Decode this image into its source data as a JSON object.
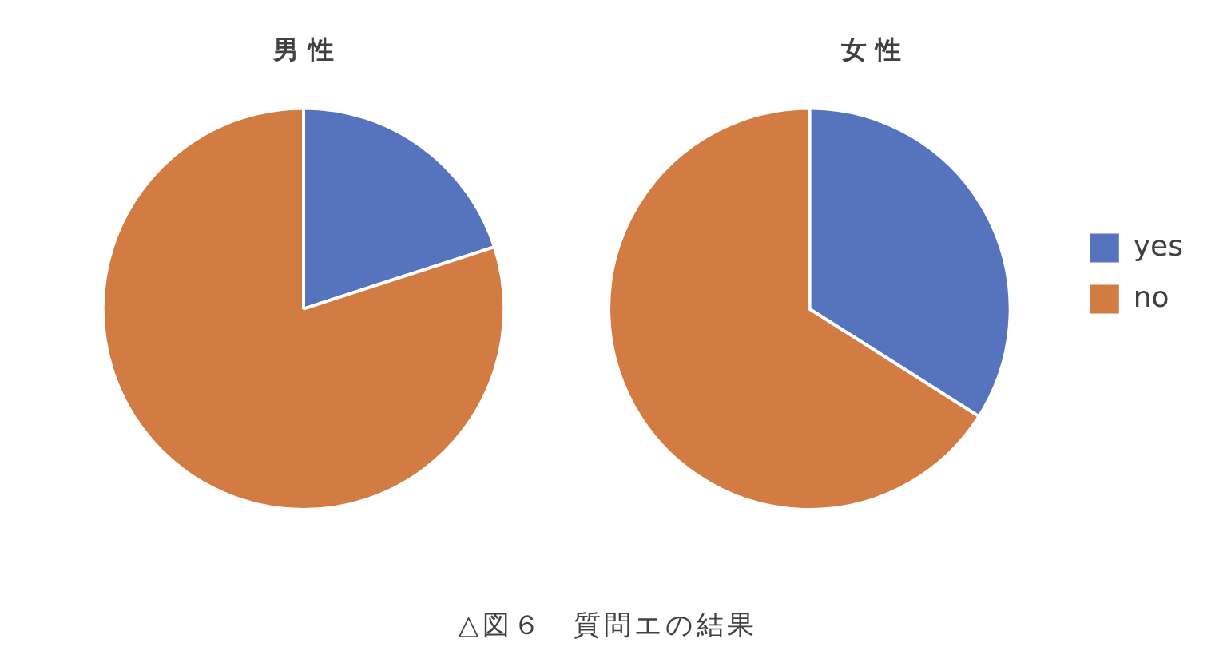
{
  "chart_data": [
    {
      "type": "pie",
      "title": "男 性",
      "categories": [
        null,
        null
      ],
      "values": [
        20,
        80
      ],
      "colors": [
        "#5673bd",
        "#d27b43"
      ],
      "legend": false
    },
    {
      "type": "pie",
      "title": "女 性",
      "categories": [
        "yes",
        "no"
      ],
      "values": [
        34,
        66
      ],
      "colors": [
        "#5673bd",
        "#d27b43"
      ],
      "legend": "right",
      "annotations": [
        "△図６　質問エの結果"
      ]
    }
  ]
}
